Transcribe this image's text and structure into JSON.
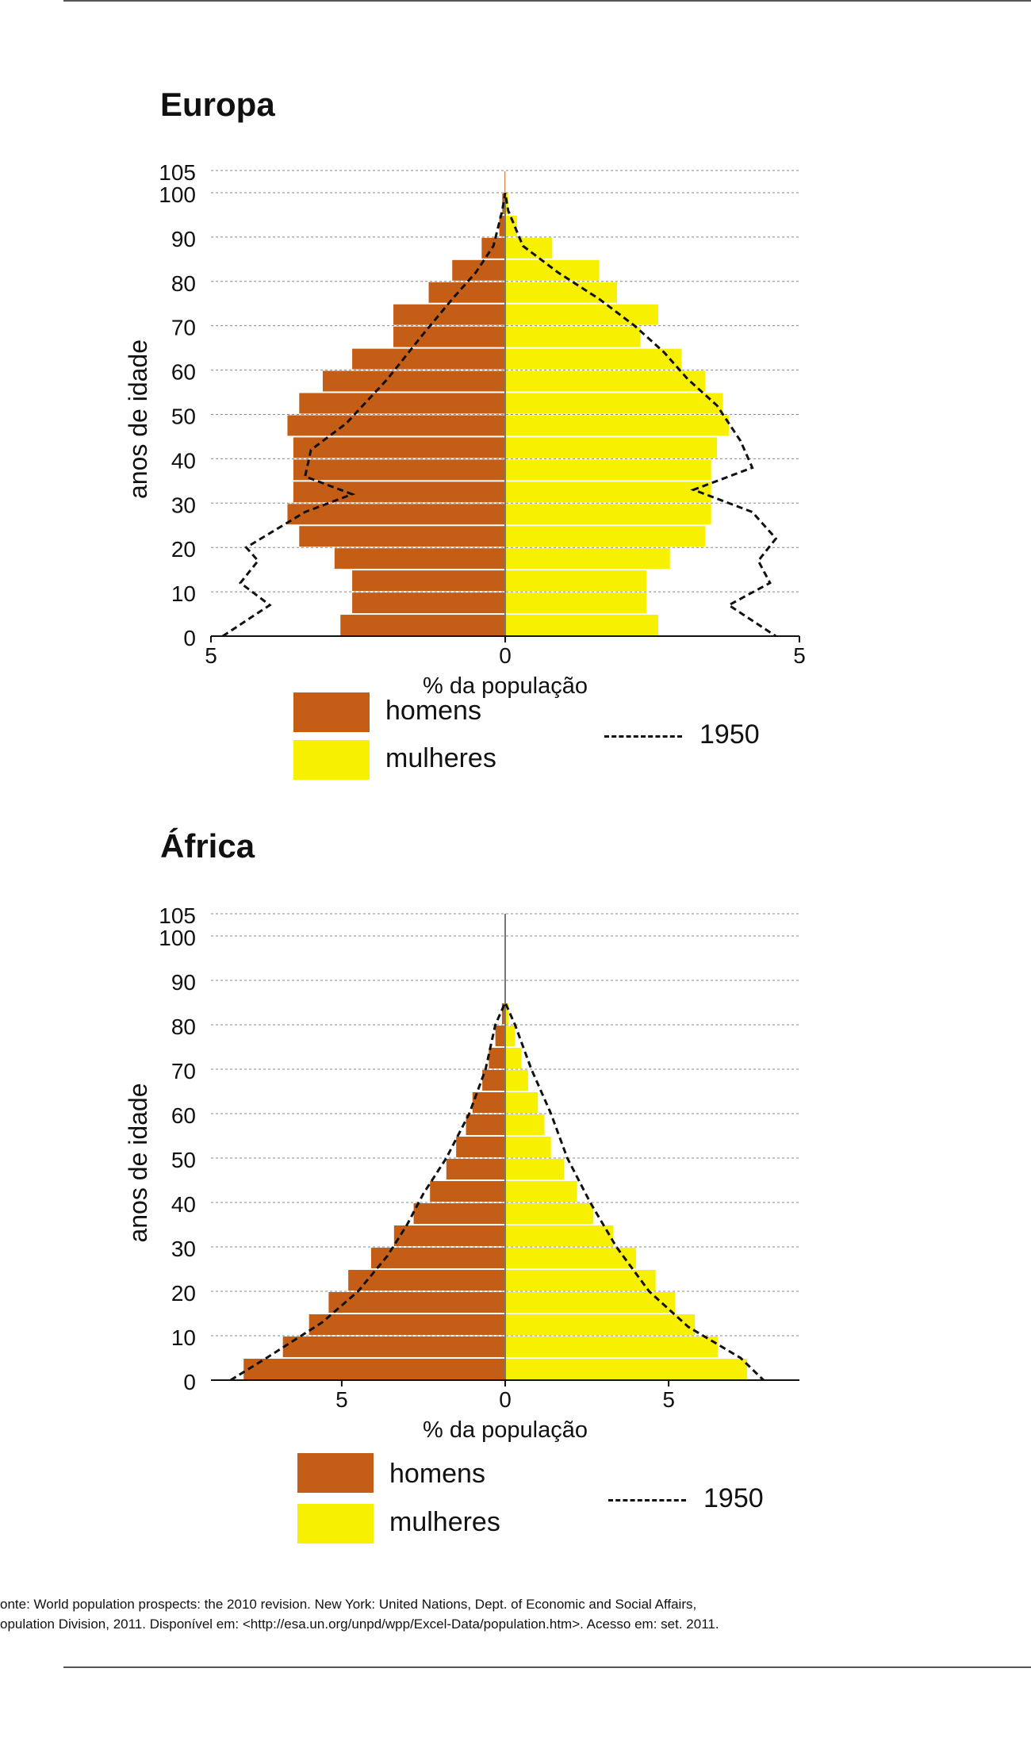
{
  "charts": [
    {
      "title": "Europa",
      "ylabel": "anos de idade",
      "xlabel": "% da população",
      "legend": {
        "men": "homens",
        "women": "mulheres",
        "line": "1950"
      }
    },
    {
      "title": "África",
      "ylabel": "anos de idade",
      "xlabel": "% da população",
      "legend": {
        "men": "homens",
        "women": "mulheres",
        "line": "1950"
      }
    }
  ],
  "source": {
    "line1": "onte: World population prospects: the 2010 revision. New York: United Nations, Dept. of Economic and Social Affairs,",
    "line2": "opulation Division, 2011. Disponível em: <http://esa.un.org/unpd/wpp/Excel-Data/population.htm>. Acesso em: set. 2011."
  },
  "colors": {
    "men": "#c45e17",
    "women": "#f7f000",
    "grid": "#888888",
    "line": "#111111"
  },
  "chart_data": [
    {
      "type": "bar",
      "title": "Europa",
      "xlabel": "% da população",
      "ylabel": "anos de idade",
      "xlim": [
        -5,
        5
      ],
      "x_ticks": [
        -5,
        0,
        5
      ],
      "x_tick_labels": [
        "5",
        "0",
        "5"
      ],
      "y_ticks": [
        0,
        10,
        20,
        30,
        40,
        50,
        60,
        70,
        80,
        90,
        100,
        105
      ],
      "age_groups": [
        "0-4",
        "5-9",
        "10-14",
        "15-19",
        "20-24",
        "25-29",
        "30-34",
        "35-39",
        "40-44",
        "45-49",
        "50-54",
        "55-59",
        "60-64",
        "65-69",
        "70-74",
        "75-79",
        "80-84",
        "85-89",
        "90-94",
        "95-99",
        "100+"
      ],
      "series": [
        {
          "name": "homens",
          "values": [
            2.8,
            2.6,
            2.6,
            2.9,
            3.5,
            3.7,
            3.6,
            3.6,
            3.6,
            3.7,
            3.5,
            3.1,
            2.6,
            1.9,
            1.9,
            1.3,
            0.9,
            0.4,
            0.1,
            0.05,
            0.01
          ]
        },
        {
          "name": "mulheres",
          "values": [
            2.6,
            2.4,
            2.4,
            2.8,
            3.4,
            3.5,
            3.5,
            3.5,
            3.6,
            3.8,
            3.7,
            3.4,
            3.0,
            2.3,
            2.6,
            1.9,
            1.6,
            0.8,
            0.2,
            0.05,
            0.01
          ]
        },
        {
          "name": "1950",
          "type": "line",
          "points": [
            [
              -4.8,
              0
            ],
            [
              -4.0,
              7
            ],
            [
              -4.5,
              12
            ],
            [
              -4.2,
              17
            ],
            [
              -4.4,
              20
            ],
            [
              -3.4,
              28
            ],
            [
              -2.6,
              32
            ],
            [
              -3.4,
              36
            ],
            [
              -3.3,
              42
            ],
            [
              -2.7,
              48
            ],
            [
              -2.0,
              58
            ],
            [
              -1.4,
              68
            ],
            [
              -0.9,
              76
            ],
            [
              -0.5,
              82
            ],
            [
              -0.2,
              88
            ],
            [
              -0.05,
              96
            ],
            [
              0,
              100
            ],
            [
              0,
              100
            ],
            [
              0.05,
              96
            ],
            [
              0.3,
              88
            ],
            [
              0.9,
              82
            ],
            [
              1.6,
              76
            ],
            [
              2.2,
              70
            ],
            [
              2.7,
              64
            ],
            [
              3.1,
              58
            ],
            [
              3.6,
              52
            ],
            [
              3.9,
              46
            ],
            [
              4.0,
              44
            ],
            [
              4.2,
              38
            ],
            [
              3.2,
              33
            ],
            [
              4.2,
              28
            ],
            [
              4.6,
              22
            ],
            [
              4.3,
              17
            ],
            [
              4.5,
              12
            ],
            [
              3.8,
              7
            ],
            [
              4.6,
              0
            ]
          ]
        }
      ]
    },
    {
      "type": "bar",
      "title": "África",
      "xlabel": "% da população",
      "ylabel": "anos de idade",
      "xlim": [
        -9,
        9
      ],
      "x_ticks": [
        -5,
        0,
        5
      ],
      "x_tick_labels": [
        "5",
        "0",
        "5"
      ],
      "y_ticks": [
        0,
        10,
        20,
        30,
        40,
        50,
        60,
        70,
        80,
        90,
        100,
        105
      ],
      "age_groups": [
        "0-4",
        "5-9",
        "10-14",
        "15-19",
        "20-24",
        "25-29",
        "30-34",
        "35-39",
        "40-44",
        "45-49",
        "50-54",
        "55-59",
        "60-64",
        "65-69",
        "70-74",
        "75-79",
        "80-84"
      ],
      "series": [
        {
          "name": "homens",
          "values": [
            8.0,
            6.8,
            6.0,
            5.4,
            4.8,
            4.1,
            3.4,
            2.8,
            2.3,
            1.8,
            1.5,
            1.2,
            1.0,
            0.7,
            0.5,
            0.3,
            0.1
          ]
        },
        {
          "name": "mulheres",
          "values": [
            7.4,
            6.5,
            5.8,
            5.2,
            4.6,
            4.0,
            3.3,
            2.7,
            2.2,
            1.8,
            1.4,
            1.2,
            1.0,
            0.7,
            0.5,
            0.3,
            0.1
          ]
        },
        {
          "name": "1950",
          "type": "line",
          "points": [
            [
              -8.4,
              0
            ],
            [
              -7.3,
              5
            ],
            [
              -5.6,
              13
            ],
            [
              -4.5,
              20
            ],
            [
              -3.6,
              28
            ],
            [
              -3.0,
              35
            ],
            [
              -2.5,
              42
            ],
            [
              -1.8,
              50
            ],
            [
              -1.1,
              60
            ],
            [
              -0.6,
              70
            ],
            [
              -0.3,
              80
            ],
            [
              0,
              85
            ],
            [
              0,
              85
            ],
            [
              0.3,
              80
            ],
            [
              0.8,
              70
            ],
            [
              1.4,
              60
            ],
            [
              1.9,
              50
            ],
            [
              2.6,
              40
            ],
            [
              3.4,
              30
            ],
            [
              4.4,
              20
            ],
            [
              5.6,
              12
            ],
            [
              7.2,
              5
            ],
            [
              7.9,
              0
            ]
          ]
        }
      ]
    }
  ]
}
